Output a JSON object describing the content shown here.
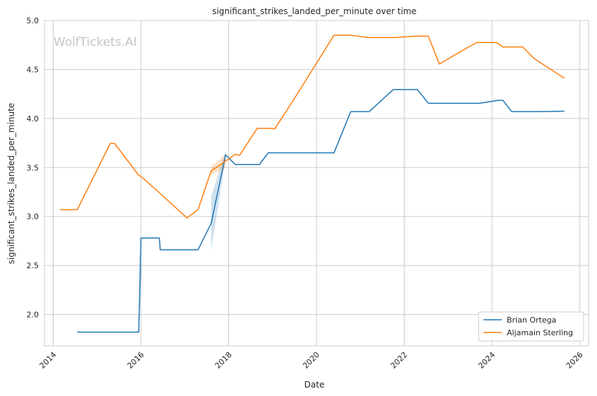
{
  "chart_data": {
    "type": "line",
    "title": "significant_strikes_landed_per_minute over time",
    "xlabel": "Date",
    "ylabel": "significant_strikes_landed_per_minute",
    "watermark": "WolfTickets.AI",
    "xlim": [
      2013.8,
      2026.2
    ],
    "ylim": [
      1.68,
      5.0
    ],
    "x_ticks": [
      2014,
      2016,
      2018,
      2020,
      2022,
      2024,
      2026
    ],
    "x_tick_labels": [
      "2014",
      "2016",
      "2018",
      "2020",
      "2022",
      "2024",
      "2026"
    ],
    "y_ticks": [
      2.0,
      2.5,
      3.0,
      3.5,
      4.0,
      4.5,
      5.0
    ],
    "y_tick_labels": [
      "2.0",
      "2.5",
      "3.0",
      "3.5",
      "4.0",
      "4.5",
      "5.0"
    ],
    "grid": true,
    "legend_position": "lower-right",
    "colors": {
      "Brian Ortega": "#1f77b4",
      "Aljamain Sterling": "#ff7f0e"
    },
    "series": [
      {
        "name": "Brian Ortega",
        "color": "#1f77b4",
        "x": [
          2014.55,
          2015.95,
          2016.0,
          2016.42,
          2016.44,
          2017.3,
          2017.6,
          2017.93,
          2018.15,
          2018.7,
          2018.9,
          2020.4,
          2020.78,
          2021.2,
          2021.75,
          2022.3,
          2022.55,
          2023.7,
          2024.15,
          2024.25,
          2024.45,
          2025.0,
          2025.65
        ],
        "values": [
          1.82,
          1.82,
          2.78,
          2.78,
          2.66,
          2.66,
          2.93,
          3.63,
          3.53,
          3.53,
          3.65,
          3.65,
          4.07,
          4.07,
          4.295,
          4.295,
          4.155,
          4.155,
          4.185,
          4.185,
          4.07,
          4.07,
          4.075
        ]
      },
      {
        "name": "Aljamain Sterling",
        "color": "#ff7f0e",
        "x": [
          2014.15,
          2014.55,
          2015.3,
          2015.4,
          2015.95,
          2016.0,
          2016.4,
          2017.05,
          2017.3,
          2017.6,
          2017.93,
          2018.15,
          2018.25,
          2018.65,
          2018.9,
          2019.05,
          2019.45,
          2020.4,
          2020.78,
          2021.2,
          2021.75,
          2022.25,
          2022.55,
          2022.8,
          2023.35,
          2023.65,
          2024.1,
          2024.25,
          2024.7,
          2024.95,
          2025.65
        ],
        "values": [
          3.07,
          3.07,
          3.745,
          3.745,
          3.42,
          3.41,
          3.25,
          2.985,
          3.07,
          3.465,
          3.565,
          3.635,
          3.625,
          3.9,
          3.9,
          3.895,
          4.17,
          4.85,
          4.85,
          4.825,
          4.825,
          4.84,
          4.84,
          4.555,
          4.7,
          4.775,
          4.775,
          4.73,
          4.73,
          4.615,
          4.41
        ]
      }
    ]
  }
}
